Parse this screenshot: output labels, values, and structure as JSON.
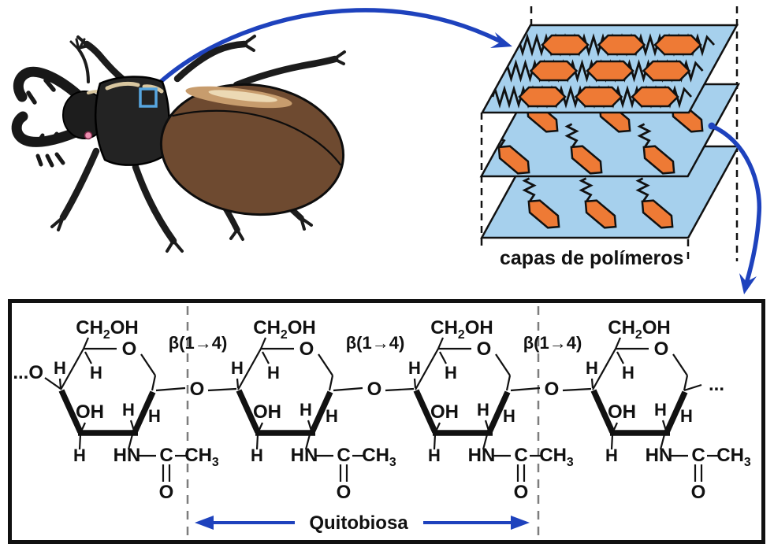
{
  "colors": {
    "arrow_blue": "#1e42bd",
    "zoom_box_blue": "#57a6e0",
    "layer_blue": "#a6d0ed",
    "hexagon_orange": "#ee7a35",
    "outline_black": "#111111",
    "dash_gray": "#7d7d7d",
    "beetle_body_black": "#1f1f1f",
    "beetle_elytra_brown": "#6e4a30",
    "beetle_highlight_tan": "#c79c6d",
    "beetle_highlight_light": "#ecd9b4",
    "beetle_pink_spot": "#ec8fb0"
  },
  "polymer_panel": {
    "caption": "capas de polímeros"
  },
  "chitin_panel": {
    "unit_count": 4,
    "left_terminal": "...O",
    "right_terminal": "...",
    "linkage_label": "β(1→4)",
    "glycosidic_oxygen": "O",
    "bracket_label": "Quitobiosa",
    "ring_labels": {
      "ch2oh_parts": [
        {
          "t": "CH"
        },
        {
          "t": "2",
          "sub": true
        },
        {
          "t": "OH"
        }
      ],
      "ring_oxygen": "O",
      "hydrogen": "H",
      "hydroxyl": "OH",
      "amide_hn": "HN",
      "amide_c": "C",
      "methyl_parts": [
        {
          "t": "CH"
        },
        {
          "t": "3",
          "sub": true
        }
      ],
      "carbonyl_oxygen": "O"
    }
  }
}
